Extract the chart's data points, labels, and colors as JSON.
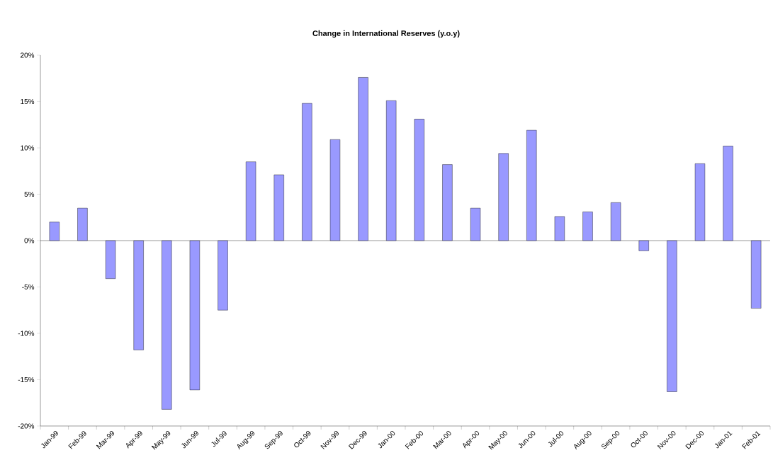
{
  "chart_data": {
    "type": "bar",
    "title": "Change in International Reserves (y.o.y)",
    "categories": [
      "Jan-99",
      "Feb-99",
      "Mar-99",
      "Apr-99",
      "May-99",
      "Jun-99",
      "Jul-99",
      "Aug-99",
      "Sep-99",
      "Oct-99",
      "Nov-99",
      "Dec-99",
      "Jan-00",
      "Feb-00",
      "Mar-00",
      "Apr-00",
      "May-00",
      "Jun-00",
      "Jul-00",
      "Aug-00",
      "Sep-00",
      "Oct-00",
      "Nov-00",
      "Dec-00",
      "Jan-01",
      "Feb-01"
    ],
    "values": [
      2.0,
      3.5,
      -4.1,
      -11.8,
      -18.2,
      -16.1,
      -7.5,
      8.5,
      7.1,
      14.8,
      10.9,
      17.6,
      15.1,
      13.1,
      8.2,
      3.5,
      9.4,
      11.9,
      2.6,
      3.1,
      4.1,
      -1.1,
      -16.3,
      8.3,
      10.2,
      -7.3
    ],
    "color": "#9999ff",
    "ylim": [
      -20,
      20
    ],
    "yticks": [
      {
        "value": -20,
        "label": "-20%"
      },
      {
        "value": -15,
        "label": "-15%"
      },
      {
        "value": -10,
        "label": "-10%"
      },
      {
        "value": -5,
        "label": "-5%"
      },
      {
        "value": 0,
        "label": "0%"
      },
      {
        "value": 5,
        "label": "5%"
      },
      {
        "value": 10,
        "label": "10%"
      },
      {
        "value": 15,
        "label": "15%"
      },
      {
        "value": 20,
        "label": "20%"
      }
    ]
  }
}
